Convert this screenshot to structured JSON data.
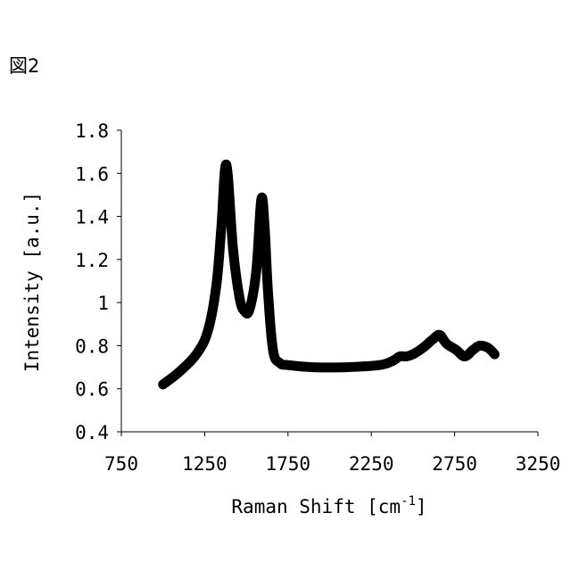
{
  "figure_label": "図2",
  "chart_data": {
    "type": "line",
    "title": "",
    "xlabel": "Raman Shift [cm",
    "xlabel_sup": "-1",
    "xlabel_end": "]",
    "ylabel": "Intensity [a.u.]",
    "xlim": [
      750,
      3250
    ],
    "ylim": [
      0.4,
      1.8
    ],
    "x_ticks": [
      750,
      1250,
      1750,
      2250,
      2750,
      3250
    ],
    "y_ticks": [
      0.4,
      0.6,
      0.8,
      1.0,
      1.2,
      1.4,
      1.6,
      1.8
    ],
    "x_tick_labels": [
      "750",
      "1250",
      "1750",
      "2250",
      "2750",
      "3250"
    ],
    "y_tick_labels": [
      "0.4",
      "0.6",
      "0.8",
      "1",
      "1.2",
      "1.4",
      "1.6",
      "1.8"
    ],
    "grid": false,
    "series": [
      {
        "color": "#000000",
        "x": [
          1000,
          1100,
          1200,
          1270,
          1320,
          1350,
          1380,
          1420,
          1460,
          1490,
          1520,
          1560,
          1590,
          1610,
          1630,
          1660,
          1700,
          1750,
          1900,
          2100,
          2300,
          2380,
          2420,
          2460,
          2500,
          2560,
          2620,
          2660,
          2700,
          2760,
          2810,
          2860,
          2900,
          2950,
          2990
        ],
        "y": [
          0.62,
          0.68,
          0.76,
          0.87,
          1.08,
          1.35,
          1.64,
          1.25,
          1.02,
          0.96,
          0.97,
          1.15,
          1.48,
          1.35,
          1.05,
          0.78,
          0.72,
          0.71,
          0.7,
          0.7,
          0.71,
          0.73,
          0.75,
          0.75,
          0.76,
          0.79,
          0.83,
          0.85,
          0.81,
          0.78,
          0.75,
          0.78,
          0.8,
          0.79,
          0.76
        ]
      }
    ]
  }
}
